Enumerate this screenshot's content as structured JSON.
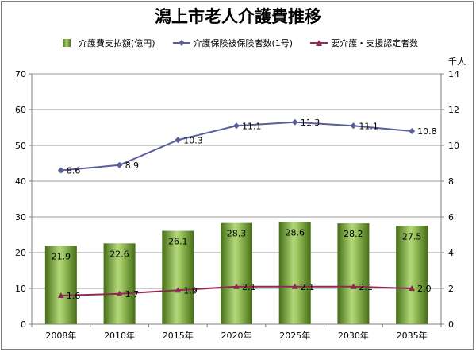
{
  "chart_data": {
    "type": "bar",
    "title": "潟上市老人介護費推移",
    "categories": [
      "2008年",
      "2010年",
      "2015年",
      "2020年",
      "2025年",
      "2030年",
      "2035年"
    ],
    "series": [
      {
        "name": "介護費支払額(億円)",
        "kind": "bar",
        "axis": "left",
        "values": [
          21.9,
          22.6,
          26.1,
          28.3,
          28.6,
          28.2,
          27.5
        ],
        "labels": [
          "21.9",
          "22.6",
          "26.1",
          "28.3",
          "28.6",
          "28.2",
          "27.5"
        ],
        "color": "#6e9b2e",
        "marker": "none"
      },
      {
        "name": "介護保険被保険者数(1号)",
        "kind": "line",
        "axis": "right",
        "values": [
          8.6,
          8.9,
          10.3,
          11.1,
          11.3,
          11.1,
          10.8
        ],
        "labels": [
          "8.6",
          "8.9",
          "10.3",
          "11.1",
          "11.3",
          "11.1",
          "10.8"
        ],
        "color": "#5a5f9c",
        "marker": "diamond"
      },
      {
        "name": "要介護・支援認定者数",
        "kind": "line",
        "axis": "right",
        "values": [
          1.6,
          1.7,
          1.9,
          2.1,
          2.1,
          2.1,
          2.0
        ],
        "labels": [
          "1.6",
          "1.7",
          "1.9",
          "2.1",
          "2.1",
          "2.1",
          "2.0"
        ],
        "color": "#8e2a55",
        "marker": "triangle"
      }
    ],
    "y_left": {
      "min": 0,
      "max": 70,
      "step": 10,
      "ticks": [
        "0",
        "10",
        "20",
        "30",
        "40",
        "50",
        "60",
        "70"
      ]
    },
    "y_right": {
      "min": 0,
      "max": 14,
      "step": 2,
      "ticks": [
        "0",
        "2",
        "4",
        "6",
        "8",
        "10",
        "12",
        "14"
      ],
      "unit": "千人"
    },
    "grid": true,
    "legend_position": "top"
  }
}
